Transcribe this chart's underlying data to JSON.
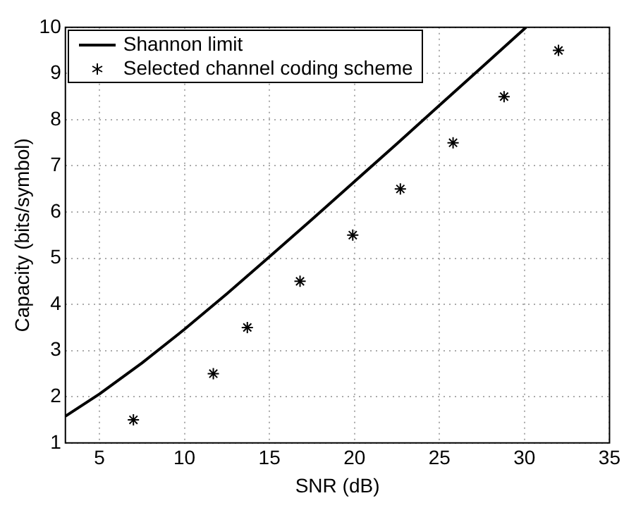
{
  "chart_data": {
    "type": "line",
    "xlabel": "SNR (dB)",
    "ylabel": "Capacity (bits/symbol)",
    "xlim": [
      3,
      35
    ],
    "xticks": [
      5,
      10,
      15,
      20,
      25,
      30,
      35
    ],
    "ylim": [
      1,
      10
    ],
    "yticks": [
      1,
      2,
      3,
      4,
      5,
      6,
      7,
      8,
      9,
      10
    ],
    "grid": true,
    "legend": "top left",
    "series": [
      {
        "name": "Shannon limit",
        "color": "#000000",
        "marker": "none",
        "line_style": "solid",
        "x": [
          3,
          5,
          7.5,
          10,
          12.5,
          15,
          17.5,
          20,
          22.5,
          25,
          27.5,
          30,
          30.1
        ],
        "values": [
          1.58,
          2.06,
          2.73,
          3.46,
          4.23,
          5.03,
          5.84,
          6.66,
          7.48,
          8.31,
          9.14,
          9.97,
          10
        ]
      },
      {
        "name": "Selected channel coding scheme",
        "type": "scatter",
        "color": "#000000",
        "marker": "cross",
        "x": [
          7,
          11.7,
          13.7,
          16.8,
          19.9,
          22.7,
          25.8,
          28.8,
          32
        ],
        "values": [
          1.5,
          2.5,
          3.5,
          4.5,
          5.5,
          6.5,
          7.5,
          8.5,
          9.5
        ]
      }
    ]
  }
}
